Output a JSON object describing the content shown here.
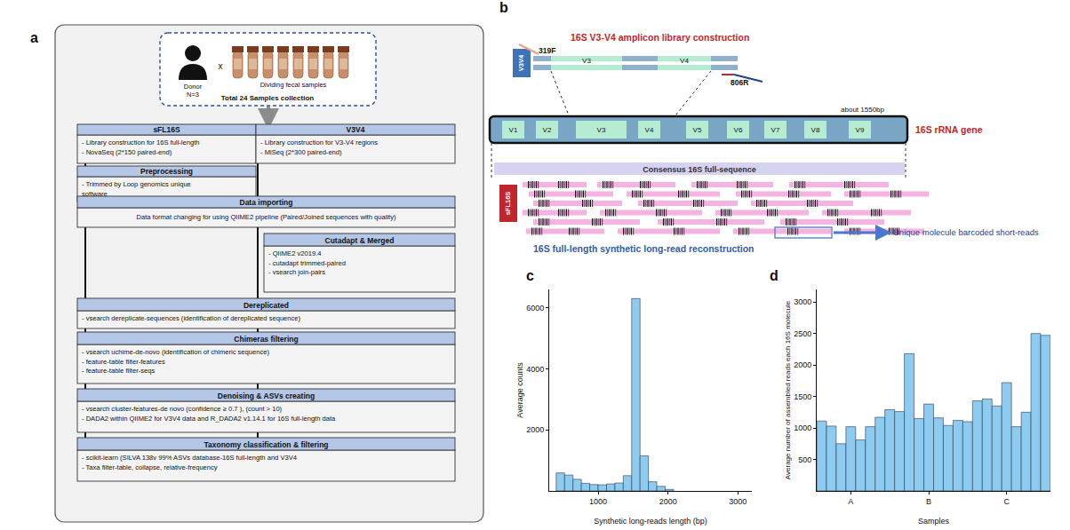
{
  "flowchart": {
    "label": "a",
    "collection": {
      "person": "Donor",
      "n": "N=3",
      "times": "x",
      "tubes": "Dividing fecal samples",
      "total": "Total 24 Samples collection"
    },
    "boxes": [
      {
        "title": "sFL16S",
        "lines": [
          "- Library construction for 16S full-length",
          "- NovaSeq (2*150 paired-end)"
        ]
      },
      {
        "title": "V3V4",
        "lines": [
          "- Library construction for V3-V4 regions",
          "- MiSeq (2*300 paired-end)"
        ]
      },
      {
        "title": "Preprocessing",
        "lines": [
          "- Trimmed by Loop genomics unique",
          "  software"
        ]
      },
      {
        "title": "Data importing",
        "lines": [
          "Data format changing for using QIIME2 pipeline (Paired/Joined sequences with quality)"
        ]
      },
      {
        "title": "Cutadapt & Merged",
        "lines": [
          "- QIIME2 v2019.4",
          "- cutadapt trimmed-paired",
          "- vsearch join-pairs"
        ]
      },
      {
        "title": "Dereplicated",
        "lines": [
          "- vsearch dereplicate-sequences (identification of dereplicated sequence)"
        ]
      },
      {
        "title": "Chimeras filtering",
        "lines": [
          "- vsearch uchime-de-novo (identification of chimeric sequence)",
          "- feature-table filter-features",
          "- feature-table filter-seqs"
        ]
      },
      {
        "title": "Denoising & ASVs creating",
        "lines": [
          "- vsearch cluster-features-de novo (confidence ≥ 0.7 ), (count > 10)",
          "- DADA2 within QIIME2 for V3V4 data and R_DADA2 v1.14.1 for 16S full-length data"
        ]
      },
      {
        "title": "Taxonomy classification & filtering",
        "lines": [
          "- scikit-learn (SILVA 138v 99% ASVs database-16S full-length and V3V4",
          "- Taxa filter-table, collapse, relative-frequency"
        ]
      }
    ]
  },
  "diagram": {
    "label": "b",
    "amplicon_title": "16S V3-V4 amplicon library construction",
    "amplicon_tag": "V3V4",
    "forward_primer": "319F",
    "reverse_primer": "806R",
    "amplicon_regions": [
      "V3",
      "V4"
    ],
    "gene_length": "about 1550bp",
    "regions": [
      "V1",
      "V2",
      "V3",
      "V4",
      "V5",
      "V6",
      "V7",
      "V8",
      "V9"
    ],
    "gene_label": "16S rRNA gene",
    "consensus": "Consensus 16S full-sequence",
    "long_read_tag": "sFL16S",
    "reconstruction": "16S full-length synthetic long-read reconstruction",
    "barcoded_reads": "Unique molecule barcoded short-reads"
  },
  "chart_data": [
    {
      "label": "c",
      "type": "histogram",
      "x_label": "Synthetic long-reads length (bp)",
      "y_label": "Average counts",
      "bins": [
        400,
        520,
        640,
        760,
        880,
        1000,
        1120,
        1240,
        1360,
        1480,
        1600,
        1720,
        1840,
        1960,
        2080
      ],
      "values": [
        590,
        520,
        380,
        250,
        210,
        200,
        230,
        260,
        500,
        6300,
        1150,
        300,
        150,
        50
      ],
      "color": "#8ecbf0",
      "xlim": [
        300,
        3200
      ],
      "xticks": [
        1000,
        2000,
        3000
      ],
      "ylim": [
        0,
        6600
      ],
      "yticks": [
        2000,
        4000,
        6000
      ],
      "grid": false
    },
    {
      "label": "d",
      "type": "bar",
      "x_label": "Samples",
      "y_label": "Average number of assembled reads each 16S molecule",
      "categories": [
        null,
        null,
        null,
        "A",
        null,
        null,
        null,
        null,
        null,
        null,
        null,
        "B",
        null,
        null,
        null,
        null,
        null,
        null,
        null,
        "C",
        null,
        null,
        null,
        null
      ],
      "values": [
        1110,
        1030,
        750,
        1020,
        810,
        1020,
        1170,
        1290,
        1260,
        2180,
        1150,
        1380,
        1160,
        1040,
        1120,
        1100,
        1430,
        1460,
        1350,
        1720,
        1020,
        1250,
        2500,
        2470
      ],
      "color": "#8ecbf0",
      "ylim": [
        0,
        3200
      ],
      "yticks": [
        500,
        1000,
        1500,
        2000,
        2500,
        3000
      ],
      "grid": false
    }
  ]
}
